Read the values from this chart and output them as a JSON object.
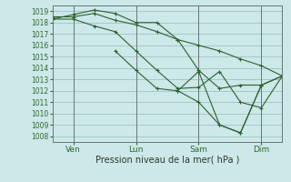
{
  "xlabel": "Pression niveau de la mer( hPa )",
  "bg_color": "#cce8e8",
  "grid_color": "#99bbbb",
  "line_color": "#2d6030",
  "ylim": [
    1007.5,
    1019.5
  ],
  "yticks": [
    1008,
    1009,
    1010,
    1011,
    1012,
    1013,
    1014,
    1015,
    1016,
    1017,
    1018,
    1019
  ],
  "xtick_labels": [
    "Ven",
    "Lun",
    "Sam",
    "Dim"
  ],
  "xtick_positions": [
    1,
    4,
    7,
    10
  ],
  "xlim": [
    0,
    11
  ],
  "series": [
    {
      "x": [
        0,
        1,
        2,
        3,
        4,
        5,
        6,
        7,
        8,
        9,
        10,
        11
      ],
      "y": [
        1018.5,
        1018.5,
        1018.8,
        1018.2,
        1017.8,
        1017.2,
        1016.5,
        1016.0,
        1015.5,
        1014.8,
        1014.2,
        1013.3
      ]
    },
    {
      "x": [
        0,
        1,
        2,
        3,
        4,
        5,
        6,
        7,
        8,
        9,
        10
      ],
      "y": [
        1018.3,
        1018.7,
        1019.1,
        1018.8,
        1018.0,
        1018.0,
        1016.5,
        1013.8,
        1012.2,
        1012.5,
        1012.5
      ]
    },
    {
      "x": [
        0,
        1,
        2,
        3,
        4,
        5,
        6,
        7,
        8,
        9,
        10,
        11
      ],
      "y": [
        1018.3,
        1018.3,
        1017.7,
        1017.2,
        1015.5,
        1013.8,
        1012.2,
        1012.3,
        1013.7,
        1011.0,
        1010.5,
        1013.3
      ]
    },
    {
      "x": [
        3,
        4,
        5,
        6,
        7,
        8,
        9,
        10,
        11
      ],
      "y": [
        1015.5,
        1013.8,
        1012.2,
        1012.0,
        1013.7,
        1009.0,
        1008.3,
        1012.5,
        1013.3
      ]
    },
    {
      "x": [
        6,
        7,
        8,
        9,
        10,
        11
      ],
      "y": [
        1012.0,
        1011.0,
        1009.0,
        1008.3,
        1012.5,
        1013.3
      ]
    }
  ]
}
